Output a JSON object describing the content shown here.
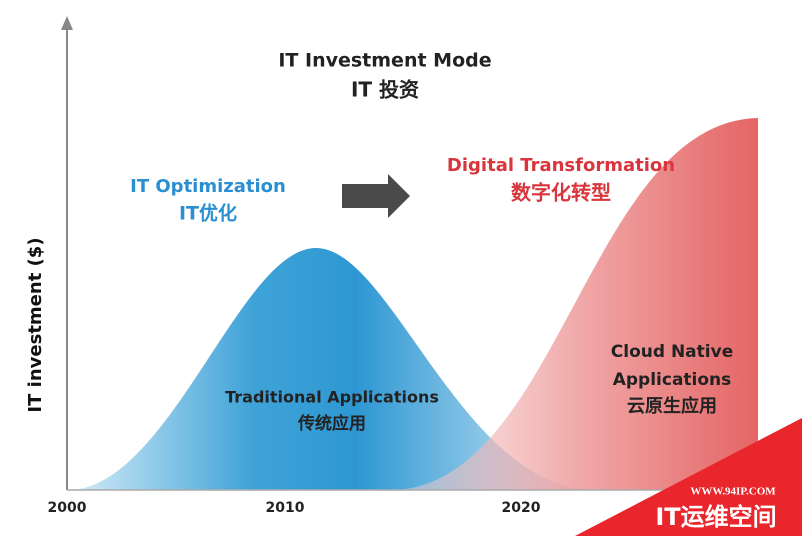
{
  "title": {
    "en": "IT Investment Mode",
    "zh": "IT 投资"
  },
  "y_axis_label": "IT investment ($)",
  "x_axis_labels": [
    "2000",
    "2010",
    "2020"
  ],
  "left_heading": {
    "en": "IT Optimization",
    "zh": "IT优化"
  },
  "right_heading": {
    "en": "Digital Transformation",
    "zh": "数字化转型"
  },
  "blue_curve": {
    "en": "Traditional Applications",
    "zh": "传统应用"
  },
  "red_curve": {
    "line1": "Cloud Native",
    "line2": "Applications",
    "zh": "云原生应用"
  },
  "watermark": {
    "url": "WWW.94IP.COM",
    "name": "IT运维空间"
  }
}
